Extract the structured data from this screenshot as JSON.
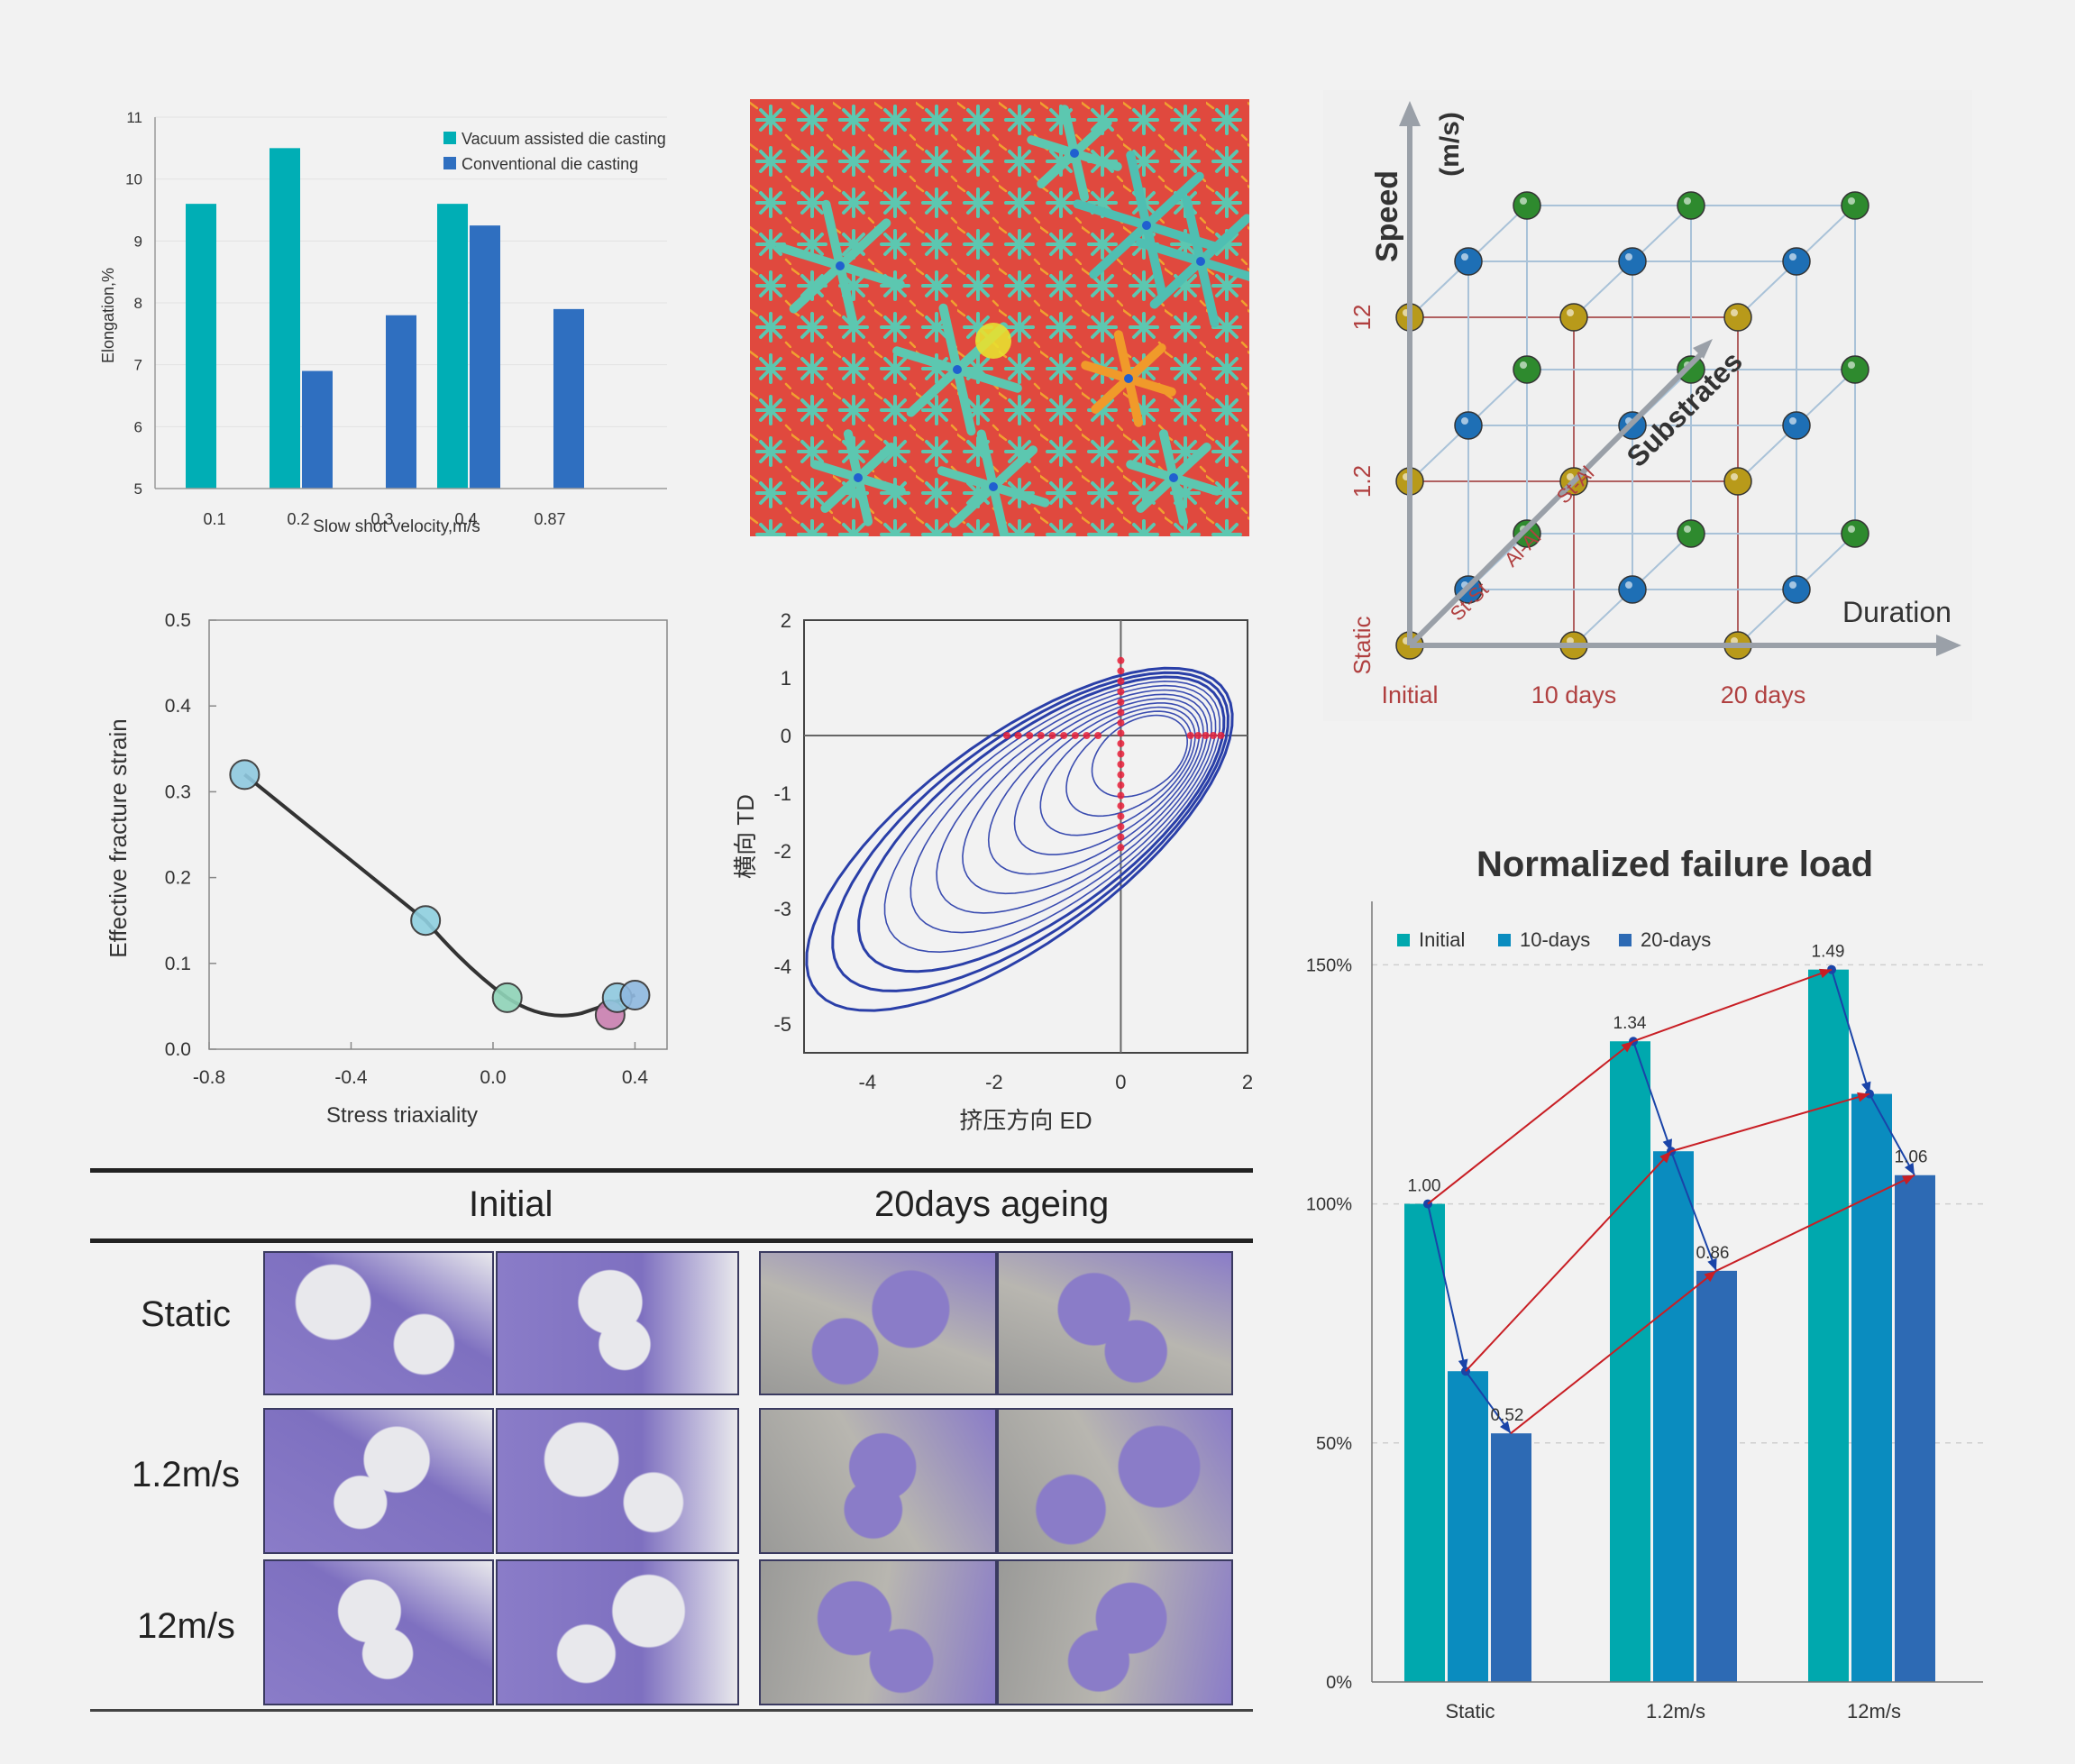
{
  "charts": [
    {
      "id": "elongation",
      "type": "bar",
      "categories": [
        "0.1",
        "0.2",
        "0.3",
        "0.4",
        "0.87"
      ],
      "series": [
        {
          "name": "Vacuum assisted die casting",
          "values": [
            9.6,
            10.5,
            null,
            9.6,
            null
          ],
          "color": "#00aeb5"
        },
        {
          "name": "Conventional die casting",
          "values": [
            null,
            6.9,
            7.8,
            9.25,
            7.9
          ],
          "color": "#2f6fc0"
        }
      ],
      "xlabel": "Slow shot velocity,m/s",
      "ylabel": "Elongation,%",
      "ylim": [
        5,
        11
      ],
      "yticks": [
        "5",
        "6",
        "7",
        "8",
        "9",
        "10",
        "11"
      ],
      "legend": "top-right"
    },
    {
      "id": "fracture",
      "type": "scatter",
      "x": [
        -0.7,
        -0.19,
        0.04,
        0.33,
        0.35,
        0.4
      ],
      "y": [
        0.32,
        0.15,
        0.06,
        0.04,
        0.06,
        0.063
      ],
      "point_colors": [
        "#8fc9e0",
        "#8fd0e0",
        "#8fd4b8",
        "#c97fb0",
        "#8fc9e0",
        "#8fb9e0"
      ],
      "xlabel": "Stress triaxiality",
      "ylabel": "Effective fracture strain",
      "xlim": [
        -0.8,
        0.4
      ],
      "ylim": [
        0.0,
        0.5
      ],
      "xticks": [
        "-0.8",
        "-0.4",
        "0.0",
        "0.4"
      ],
      "yticks": [
        "0.0",
        "0.1",
        "0.2",
        "0.3",
        "0.4",
        "0.5"
      ]
    },
    {
      "id": "yield_locus",
      "type": "line",
      "xlabel": "挤压方向 ED",
      "ylabel": "横向 TD",
      "xlim": [
        -5,
        2
      ],
      "ylim": [
        -5.5,
        2
      ],
      "xticks": [
        "-4",
        "-2",
        "0",
        "2"
      ],
      "yticks": [
        "2",
        "1",
        "0",
        "-1",
        "-2",
        "-3",
        "-4",
        "-5"
      ]
    },
    {
      "id": "normalized",
      "type": "bar",
      "title": "Normalized failure load",
      "categories": [
        "Static",
        "1.2m/s",
        "12m/s"
      ],
      "series": [
        {
          "name": "Initial",
          "values": [
            1.0,
            1.34,
            1.49
          ],
          "color": "#00a8ae"
        },
        {
          "name": "10-days",
          "values": [
            0.65,
            1.11,
            1.23
          ],
          "color": "#0a8cbf"
        },
        {
          "name": "20-days",
          "values": [
            0.52,
            0.86,
            1.06
          ],
          "color": "#2d6ab4"
        }
      ],
      "data_labels": [
        "1.00",
        "1.34",
        "1.49",
        "0.52",
        "0.86",
        "1.06"
      ],
      "yticks": [
        "0%",
        "50%",
        "100%",
        "150%"
      ],
      "ylim": [
        0,
        1.6
      ],
      "legend": "top-left"
    }
  ],
  "cube": {
    "axis_speed": "Speed",
    "axis_unit": "(m/s)",
    "axis_duration": "Duration",
    "axis_substrates": "Substrates",
    "speed_labels": [
      "Static",
      "1.2",
      "12"
    ],
    "duration_labels": [
      "Initial",
      "10 days",
      "20 days"
    ],
    "substrate_labels": [
      "St-St",
      "Al-Al",
      "St-Al"
    ],
    "colors": {
      "initial": "#b89a1a",
      "d10": "#2e8a2e",
      "d20": "#1e6fb5"
    }
  },
  "samples": {
    "col_initial": "Initial",
    "col_aged": "20days ageing",
    "rows": [
      "Static",
      "1.2m/s",
      "12m/s"
    ]
  }
}
